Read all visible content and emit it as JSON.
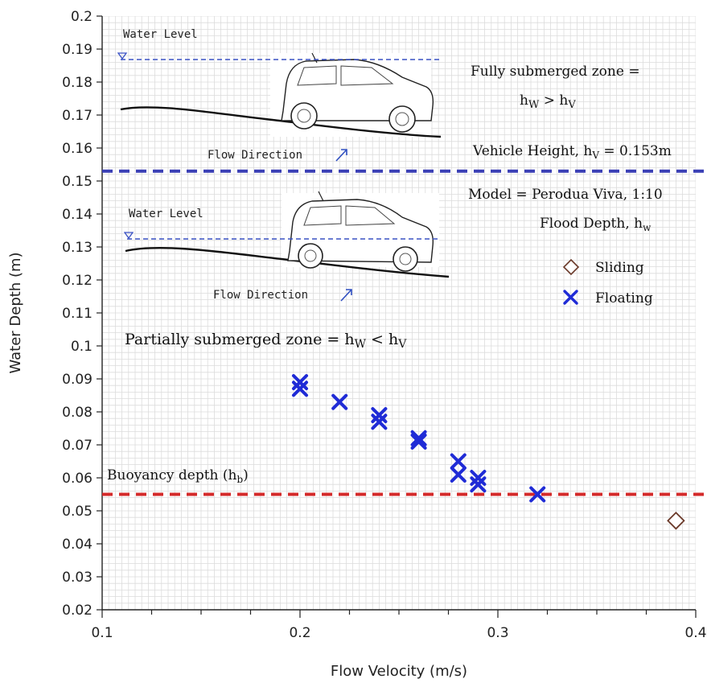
{
  "chart_data": {
    "type": "scatter",
    "xlabel": "Flow Velocity (m/s)",
    "ylabel": "Water Depth (m)",
    "xlim": [
      0.1,
      0.4
    ],
    "ylim": [
      0.02,
      0.2
    ],
    "x_ticks": [
      "0.1",
      "0.2",
      "0.3",
      "0.4"
    ],
    "y_ticks": [
      "0.02",
      "0.03",
      "0.04",
      "0.05",
      "0.06",
      "0.07",
      "0.08",
      "0.09",
      "0.1",
      "0.11",
      "0.12",
      "0.13",
      "0.14",
      "0.15",
      "0.16",
      "0.17",
      "0.18",
      "0.19",
      "0.2"
    ],
    "grid": true,
    "legend_position": "right",
    "series": [
      {
        "name": "Sliding",
        "marker": "diamond",
        "color": "#6b3a2a",
        "points": [
          [
            0.39,
            0.047
          ]
        ]
      },
      {
        "name": "Floating",
        "marker": "x",
        "color": "#1f2bd6",
        "points": [
          [
            0.2,
            0.087
          ],
          [
            0.2,
            0.089
          ],
          [
            0.22,
            0.083
          ],
          [
            0.24,
            0.077
          ],
          [
            0.24,
            0.079
          ],
          [
            0.26,
            0.071
          ],
          [
            0.26,
            0.072
          ],
          [
            0.28,
            0.061
          ],
          [
            0.28,
            0.065
          ],
          [
            0.29,
            0.058
          ],
          [
            0.29,
            0.06
          ],
          [
            0.32,
            0.055
          ]
        ]
      }
    ],
    "reference_lines": [
      {
        "value": 0.153,
        "color": "#3a3fb5"
      },
      {
        "value": 0.055,
        "color": "#d42a2a"
      }
    ],
    "annotations": {
      "water_level_top": "Water Level",
      "flow_direction_top": "Flow Direction",
      "water_level_bottom": "Water Level",
      "flow_direction_bottom": "Flow Direction",
      "fully_zone_line1": "Fully submerged zone =",
      "fully_zone_hw": "h",
      "fully_zone_hw_sub": "W",
      "fully_zone_op": " > ",
      "fully_zone_hv": "h",
      "fully_zone_hv_sub": "V",
      "vehicle_height_prefix": "Vehicle Height, h",
      "vehicle_height_sub": "V",
      "vehicle_height_suffix": " = 0.153m",
      "model": "Model = Perodua Viva, 1:10",
      "flood_depth_prefix": "Flood Depth, h",
      "flood_depth_sub": "w",
      "partial_zone_prefix": "Partially submerged zone = h",
      "partial_zone_sub1": "W",
      "partial_zone_op": " < h",
      "partial_zone_sub2": "V",
      "buoyancy_prefix": "Buoyancy depth (h",
      "buoyancy_sub": "b",
      "buoyancy_suffix": ")"
    }
  }
}
